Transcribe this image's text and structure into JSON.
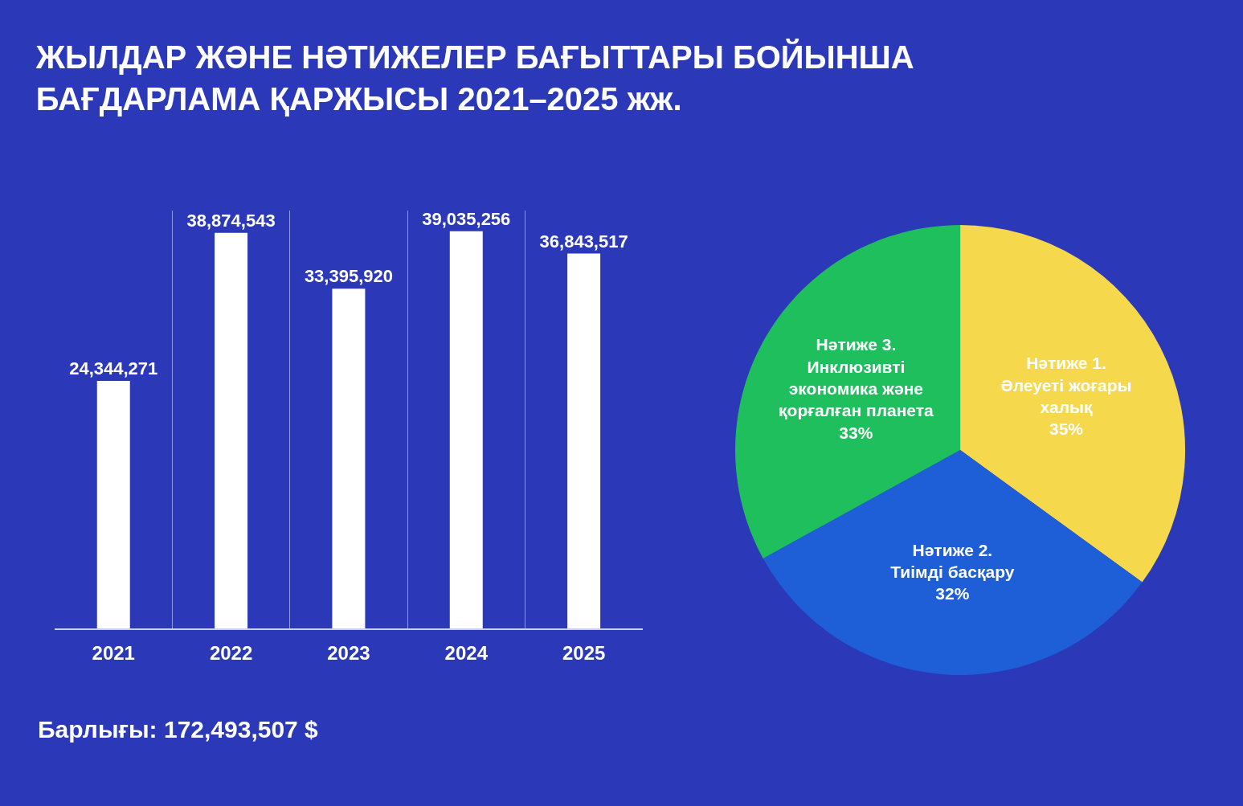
{
  "chart_data": [
    {
      "type": "bar",
      "title": "ЖЫЛДАР ЖӘНЕ НӘТИЖЕЛЕР БАҒЫТТАРЫ БОЙЫНША\nБАҒДАРЛАМА ҚАРЖЫСЫ 2021–2025 жж.",
      "categories": [
        "2021",
        "2022",
        "2023",
        "2024",
        "2025"
      ],
      "values": [
        24344271,
        38874543,
        33395920,
        39035256,
        36843517
      ],
      "value_labels": [
        "24,344,271",
        "38,874,543",
        "33,395,920",
        "39,035,256",
        "36,843,517"
      ],
      "color": "#ffffff",
      "grid": "x",
      "tick_labels": "x",
      "annotations": [
        "Барлығы: 172,493,507 $"
      ]
    },
    {
      "type": "pie",
      "categories": [
        "Нәтиже 1.\nӘлеуеті жоғары\nхалық",
        "Нәтиже 2.\nТиімді басқару",
        "Нәтиже 3.\nИнклюзивті\nэкономика және\nқорғалған планета"
      ],
      "values": [
        35,
        32,
        33
      ],
      "value_labels": [
        "35%",
        "32%",
        "33%"
      ],
      "colors": [
        "#f6d84c",
        "#1e5ed6",
        "#20bf5e"
      ]
    }
  ]
}
